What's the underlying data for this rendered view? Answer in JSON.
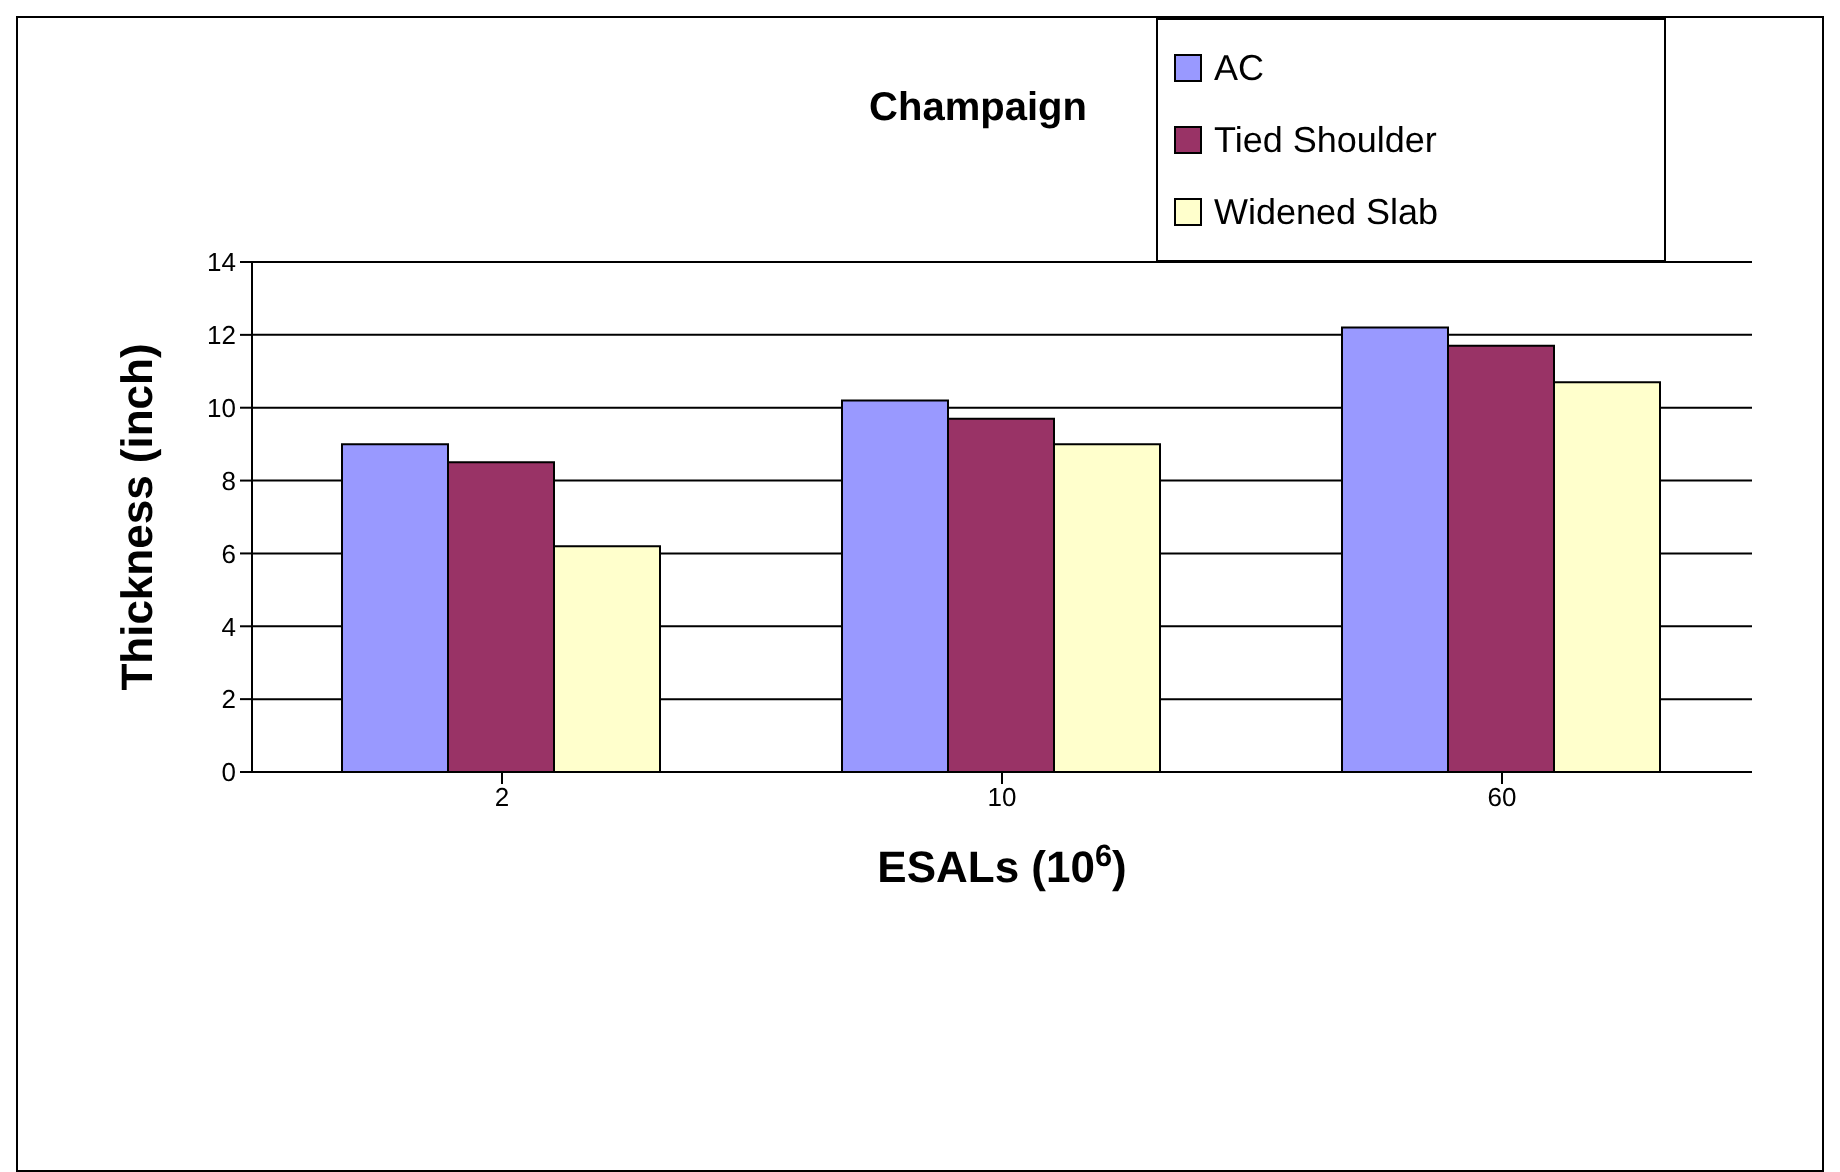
{
  "chart_data": {
    "type": "bar",
    "title": "Champaign",
    "xlabel": "ESALs (10$^{6}$)",
    "ylabel": "Thickness (inch)",
    "categories": [
      "2",
      "10",
      "60"
    ],
    "series": [
      {
        "name": "AC",
        "color": "#9999ff",
        "values": [
          9.0,
          10.2,
          12.2
        ]
      },
      {
        "name": "Tied Shoulder",
        "color": "#993366",
        "values": [
          8.5,
          9.7,
          11.7
        ]
      },
      {
        "name": "Widened Slab",
        "color": "#ffffcc",
        "values": [
          6.2,
          9.0,
          10.7
        ]
      }
    ],
    "ylim": [
      0,
      14
    ],
    "yticks": [
      0,
      2,
      4,
      6,
      8,
      10,
      12,
      14
    ],
    "grid": "y",
    "legend": "top right"
  }
}
